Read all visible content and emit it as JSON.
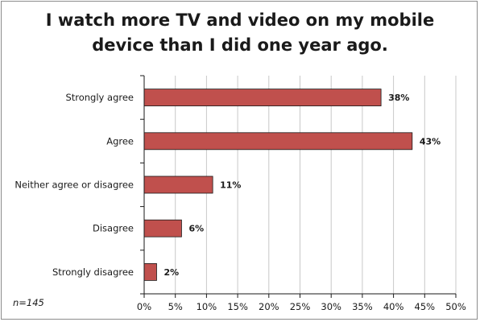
{
  "chart_data": {
    "type": "bar",
    "orientation": "horizontal",
    "title": [
      "I watch more TV and video on my mobile",
      "device than I did one year ago."
    ],
    "categories": [
      "Strongly agree",
      "Agree",
      "Neither agree or disagree",
      "Disagree",
      "Strongly disagree"
    ],
    "values": [
      38,
      43,
      11,
      6,
      2
    ],
    "data_labels": [
      "38%",
      "43%",
      "11%",
      "6%",
      "2%"
    ],
    "xlim": [
      0,
      50
    ],
    "x_ticks": [
      "0%",
      "5%",
      "10%",
      "15%",
      "20%",
      "25%",
      "30%",
      "35%",
      "40%",
      "45%",
      "50%"
    ],
    "x_tick_values": [
      0,
      5,
      10,
      15,
      20,
      25,
      30,
      35,
      40,
      45,
      50
    ],
    "grid": true,
    "bar_color": "#c0504d",
    "bar_edge_color": "#1a1a1a",
    "grid_color": "#c8c8c8",
    "note": "n=145"
  }
}
